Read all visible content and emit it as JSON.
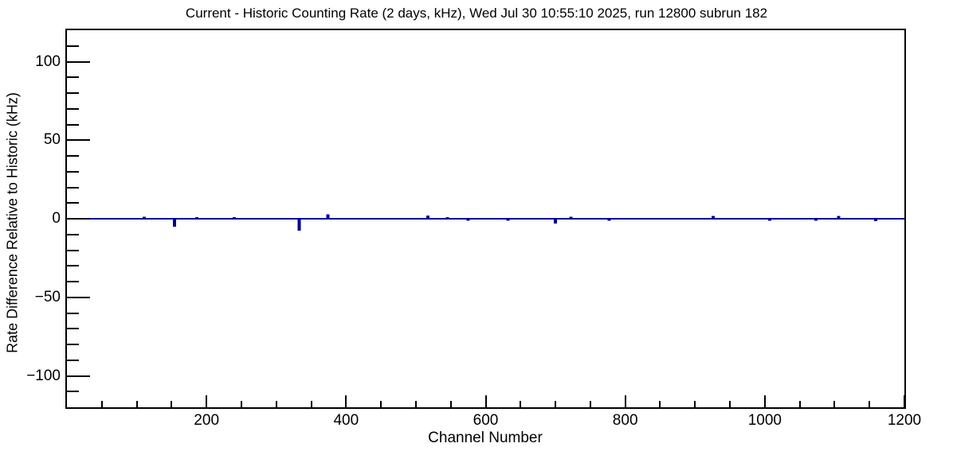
{
  "title": "Current - Historic Counting Rate (2 days, kHz), Wed Jul 30 10:55:10 2025, run 12800 subrun 182",
  "chart_data": {
    "type": "line",
    "title": "Current - Historic Counting Rate (2 days, kHz), Wed Jul 30 10:55:10 2025, run 12800 subrun 182",
    "xlabel": "Channel Number",
    "ylabel": "Rate Difference Relative to Historic (kHz)",
    "xlim": [
      0,
      1200
    ],
    "ylim": [
      -120,
      120
    ],
    "grid": false,
    "legend": "none",
    "line_color": "#000099",
    "axis_color": "#000000",
    "background_color": "#ffffff",
    "x_major_ticks": [
      200,
      400,
      600,
      800,
      1000,
      1200
    ],
    "x_minor_step": 50,
    "y_major_ticks": [
      100,
      50,
      0,
      -50,
      -100
    ],
    "y_minor_step": 10,
    "baseline_value": 0,
    "series_note": "flat at 0 kHz across all channels except sparse spikes",
    "spikes": [
      {
        "channel": 111,
        "value": 0.8
      },
      {
        "channel": 154,
        "value": -4.5
      },
      {
        "channel": 186,
        "value": 0.6
      },
      {
        "channel": 240,
        "value": 0.6
      },
      {
        "channel": 333,
        "value": -7.0
      },
      {
        "channel": 374,
        "value": 2.2
      },
      {
        "channel": 517,
        "value": 1.5
      },
      {
        "channel": 545,
        "value": 0.6
      },
      {
        "channel": 575,
        "value": -0.8
      },
      {
        "channel": 632,
        "value": -0.8
      },
      {
        "channel": 700,
        "value": -2.5
      },
      {
        "channel": 722,
        "value": 0.8
      },
      {
        "channel": 777,
        "value": -0.8
      },
      {
        "channel": 926,
        "value": 1.3
      },
      {
        "channel": 1007,
        "value": -0.8
      },
      {
        "channel": 1073,
        "value": -0.8
      },
      {
        "channel": 1106,
        "value": 1.3
      },
      {
        "channel": 1159,
        "value": -1.0
      }
    ]
  }
}
